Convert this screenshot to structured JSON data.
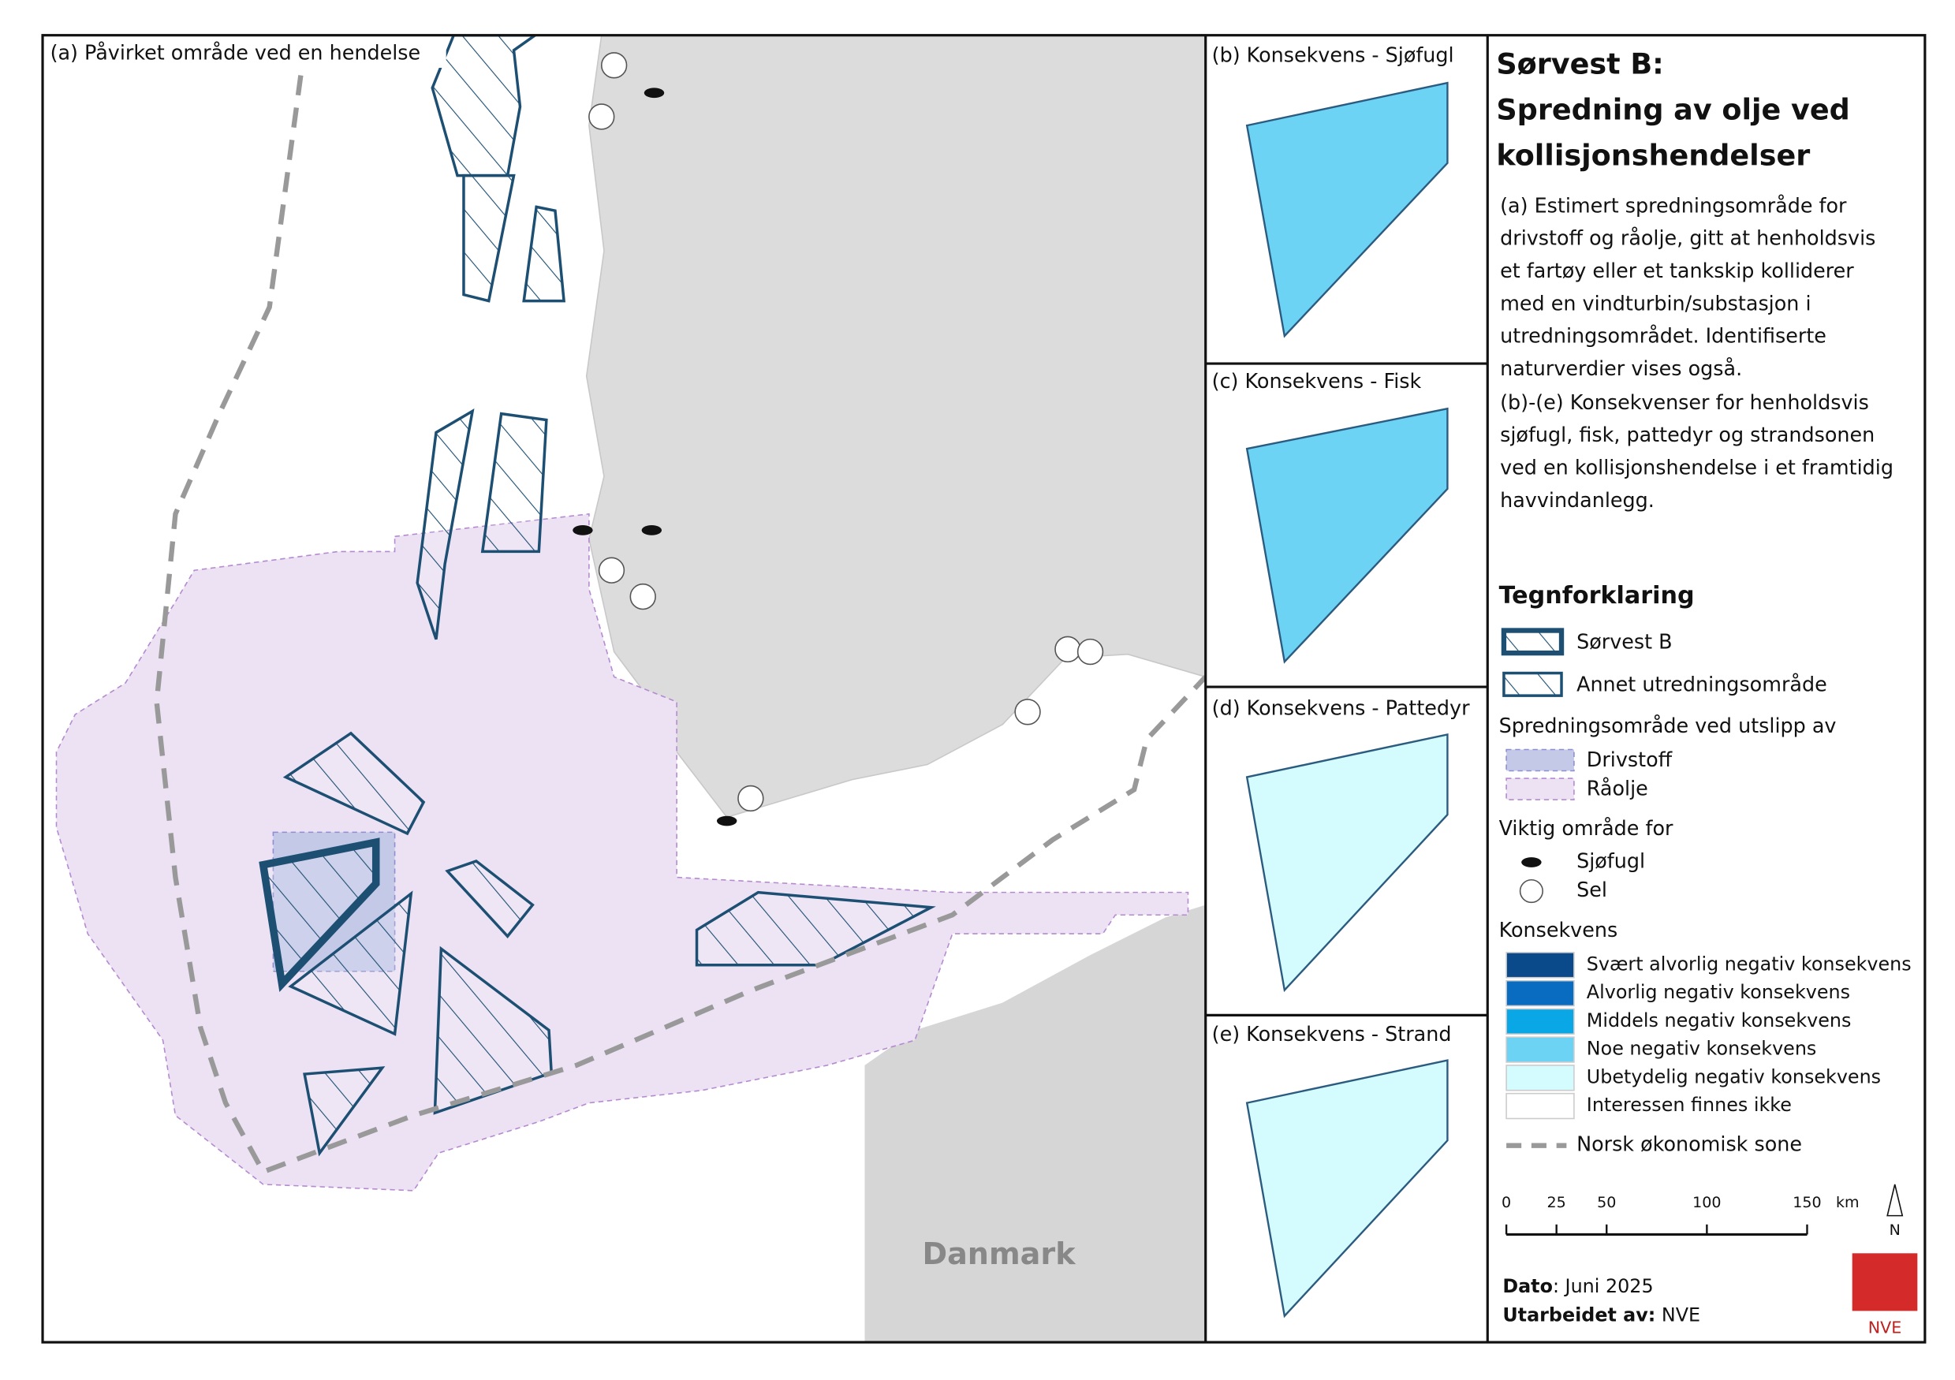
{
  "map": {
    "label": "(a) Påvirket område ved en hendelse",
    "place_label": "Danmark"
  },
  "panels": [
    "(b) Konsekvens - Sjøfugl",
    "(c) Konsekvens - Fisk",
    "(d) Konsekvens - Pattedyr",
    "(e) Konsekvens - Strand"
  ],
  "sidebar": {
    "title": [
      "Sørvest B:",
      "Spredning av olje ved",
      "kollisjonshendelser"
    ],
    "description_a": [
      "(a) Estimert spredningsområde for",
      "drivstoff og råolje, gitt at henholdsvis",
      "et fartøy eller et tankskip kolliderer",
      "med en vindturbin/substasjon i",
      "utredningsområdet. Identifiserte",
      "naturverdier vises også."
    ],
    "description_b": [
      "(b)-(e) Konsekvenser for henholdsvis",
      "sjøfugl, fisk, pattedyr og strandsonen",
      "ved en kollisjonshendelse i et framtidig",
      "havvindanlegg."
    ],
    "legend": {
      "heading": "Tegnforklaring",
      "areas": [
        "Sørvest B",
        "Annet utredningsområde"
      ],
      "spread_heading": "Spredningsområde ved utslipp av",
      "spread": [
        "Drivstoff",
        "Råolje"
      ],
      "important_heading": "Viktig område for",
      "important": [
        "Sjøfugl",
        "Sel"
      ],
      "consequence_heading": "Konsekvens",
      "consequence": [
        "Svært alvorlig negativ konsekvens",
        "Alvorlig negativ konsekvens",
        "Middels negativ konsekvens",
        "Noe negativ konsekvens",
        "Ubetydelig negativ konsekvens",
        "Interessen finnes ikke"
      ],
      "eez": "Norsk økonomisk sone"
    },
    "scale": {
      "ticks": [
        0,
        25,
        50,
        100,
        150
      ],
      "unit": "km"
    },
    "north": "N",
    "date_label": "Dato",
    "date_value": ": Juni 2025",
    "author_label": "Utarbeidet av:",
    "author_value": " NVE",
    "logo": "NVE"
  }
}
